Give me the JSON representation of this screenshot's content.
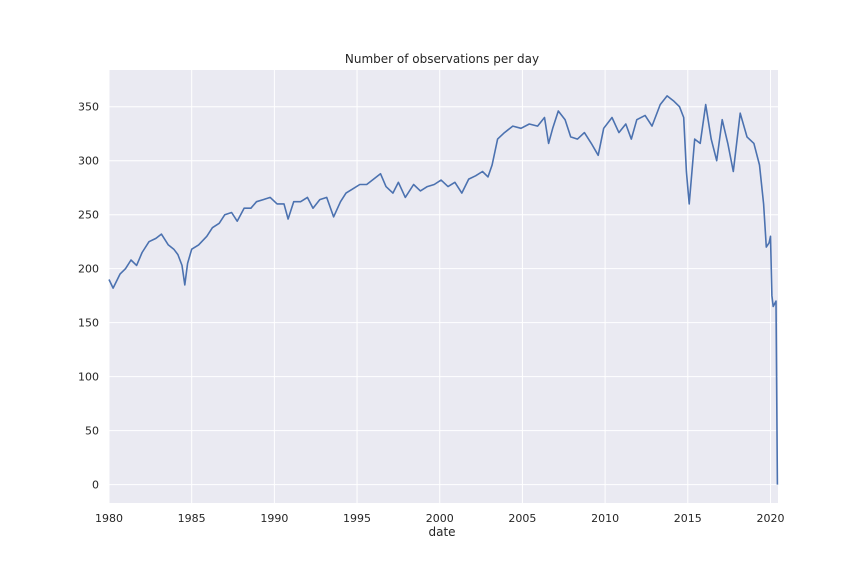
{
  "chart_data": {
    "type": "line",
    "title": "Number of observations per day",
    "xlabel": "date",
    "ylabel": "",
    "xlim": [
      "1980-01-01",
      "2020-06-15"
    ],
    "ylim": [
      -17,
      384
    ],
    "x_ticks": [
      "1980",
      "1985",
      "1990",
      "1995",
      "2000",
      "2005",
      "2010",
      "2015",
      "2020"
    ],
    "y_ticks": [
      0,
      50,
      100,
      150,
      200,
      250,
      300,
      350
    ],
    "grid": true,
    "legend": "none",
    "colors": {
      "line": "#4c72b0",
      "background": "#eaeaf2",
      "grid": "#ffffff"
    },
    "series": [
      {
        "x": [
          "1980-01",
          "1980-04",
          "1980-09",
          "1981-01",
          "1981-05",
          "1981-09",
          "1982-01",
          "1982-06",
          "1982-11",
          "1983-03",
          "1983-08",
          "1983-12",
          "1984-03",
          "1984-06",
          "1984-08",
          "1984-10",
          "1985-01",
          "1985-06",
          "1985-12",
          "1986-04",
          "1986-09",
          "1987-01",
          "1987-06",
          "1987-10",
          "1988-03",
          "1988-08",
          "1988-12",
          "1989-05",
          "1989-10",
          "1990-03",
          "1990-08",
          "1990-11",
          "1991-03",
          "1991-08",
          "1992-01",
          "1992-05",
          "1992-10",
          "1993-03",
          "1993-08",
          "1994-01",
          "1994-05",
          "1994-10",
          "1995-03",
          "1995-08",
          "1996-01",
          "1996-06",
          "1996-10",
          "1997-03",
          "1997-07",
          "1997-12",
          "1998-06",
          "1998-11",
          "1999-04",
          "1999-09",
          "2000-02",
          "2000-07",
          "2000-12",
          "2001-05",
          "2001-10",
          "2002-03",
          "2002-08",
          "2002-12",
          "2003-03",
          "2003-07",
          "2003-12",
          "2004-06",
          "2004-12",
          "2005-06",
          "2005-12",
          "2006-05",
          "2006-08",
          "2006-11",
          "2007-03",
          "2007-08",
          "2007-12",
          "2008-05",
          "2008-10",
          "2009-03",
          "2009-08",
          "2009-12",
          "2010-06",
          "2010-11",
          "2011-04",
          "2011-08",
          "2011-12",
          "2012-06",
          "2012-11",
          "2013-05",
          "2013-10",
          "2014-03",
          "2014-07",
          "2014-10",
          "2014-12",
          "2015-02",
          "2015-06",
          "2015-10",
          "2016-02",
          "2016-06",
          "2016-10",
          "2017-02",
          "2017-06",
          "2017-10",
          "2018-03",
          "2018-08",
          "2019-01",
          "2019-05",
          "2019-08",
          "2019-10",
          "2019-12",
          "2020-01",
          "2020-02",
          "2020-03",
          "2020-05",
          "2020-06"
        ],
        "y": [
          190,
          182,
          195,
          200,
          208,
          203,
          215,
          225,
          228,
          232,
          222,
          218,
          213,
          203,
          185,
          205,
          218,
          222,
          230,
          238,
          242,
          250,
          252,
          244,
          256,
          256,
          262,
          264,
          266,
          260,
          260,
          246,
          262,
          262,
          266,
          256,
          264,
          266,
          248,
          262,
          270,
          274,
          278,
          278,
          283,
          288,
          276,
          270,
          280,
          266,
          278,
          272,
          276,
          278,
          282,
          276,
          280,
          270,
          283,
          286,
          290,
          285,
          296,
          320,
          326,
          332,
          330,
          334,
          332,
          340,
          316,
          330,
          346,
          338,
          322,
          320,
          326,
          316,
          305,
          330,
          340,
          326,
          334,
          320,
          338,
          342,
          332,
          352,
          360,
          355,
          350,
          340,
          290,
          260,
          320,
          316,
          352,
          320,
          300,
          338,
          316,
          290,
          344,
          322,
          316,
          296,
          260,
          220,
          224,
          230,
          175,
          165,
          170,
          0
        ]
      }
    ]
  }
}
